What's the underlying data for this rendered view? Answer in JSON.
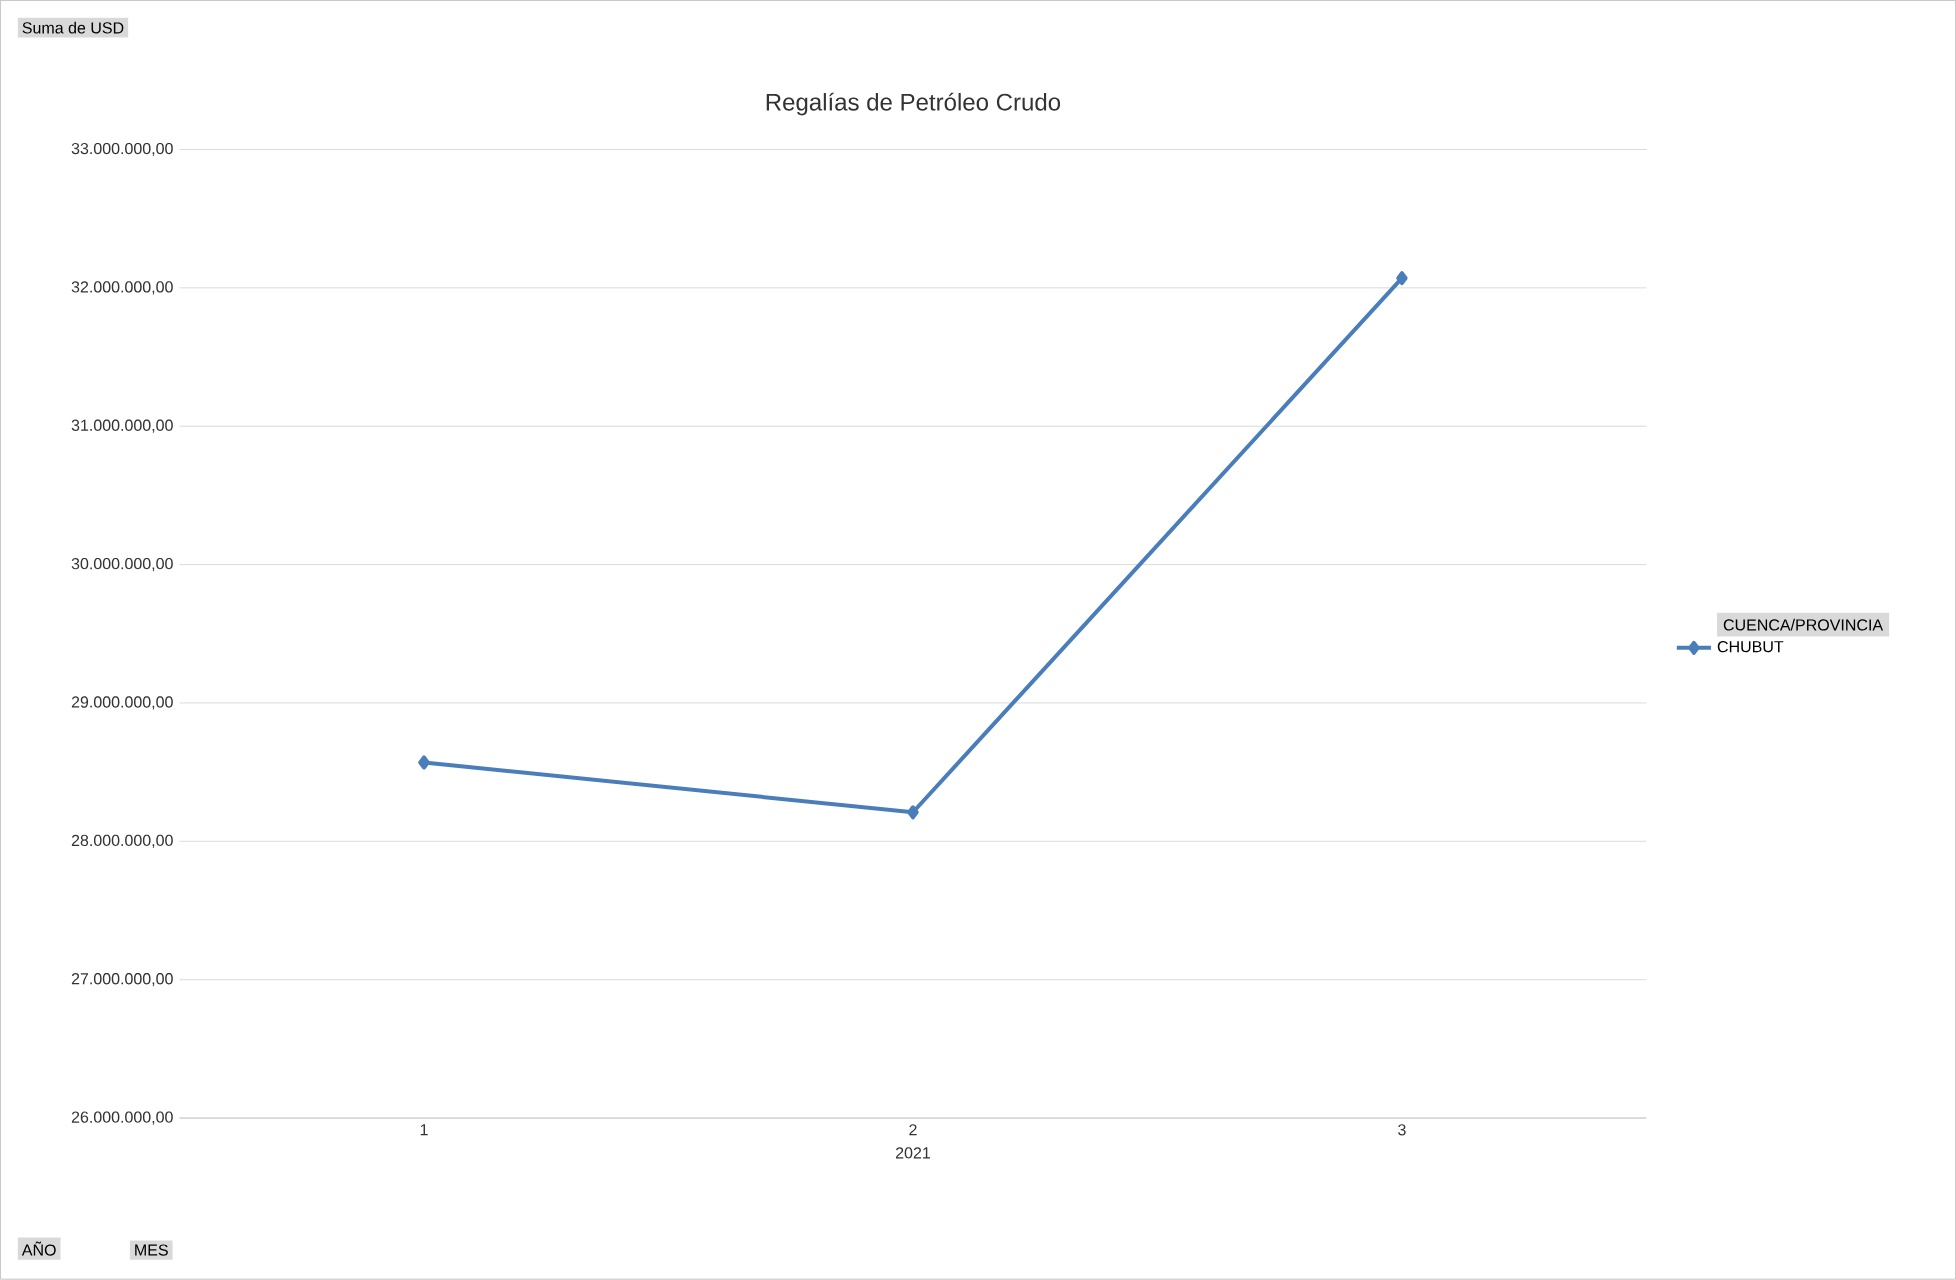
{
  "chart_data": {
    "type": "line",
    "title": "Regalías de Petróleo Crudo",
    "xlabel": "2021",
    "legend_title": "CUENCA/PROVINCIA",
    "annotations": [
      "Suma de USD",
      "AÑO",
      "MES"
    ],
    "categories": [
      "1",
      "2",
      "3"
    ],
    "series": [
      {
        "name": "CHUBUT",
        "color": "#4a7ebb",
        "values": [
          28570000,
          28210000,
          32070000
        ]
      }
    ],
    "ylim": [
      26000000,
      33000000
    ],
    "yticks": [
      {
        "value": 26000000,
        "label": "26.000.000,00"
      },
      {
        "value": 27000000,
        "label": "27.000.000,00"
      },
      {
        "value": 28000000,
        "label": "28.000.000,00"
      },
      {
        "value": 29000000,
        "label": "29.000.000,00"
      },
      {
        "value": 30000000,
        "label": "30.000.000,00"
      },
      {
        "value": 31000000,
        "label": "31.000.000,00"
      },
      {
        "value": 32000000,
        "label": "32.000.000,00"
      },
      {
        "value": 33000000,
        "label": "33.000.000,00"
      }
    ],
    "grid": "y",
    "legend": "right",
    "marker": "diamond",
    "line_style": "solid"
  }
}
